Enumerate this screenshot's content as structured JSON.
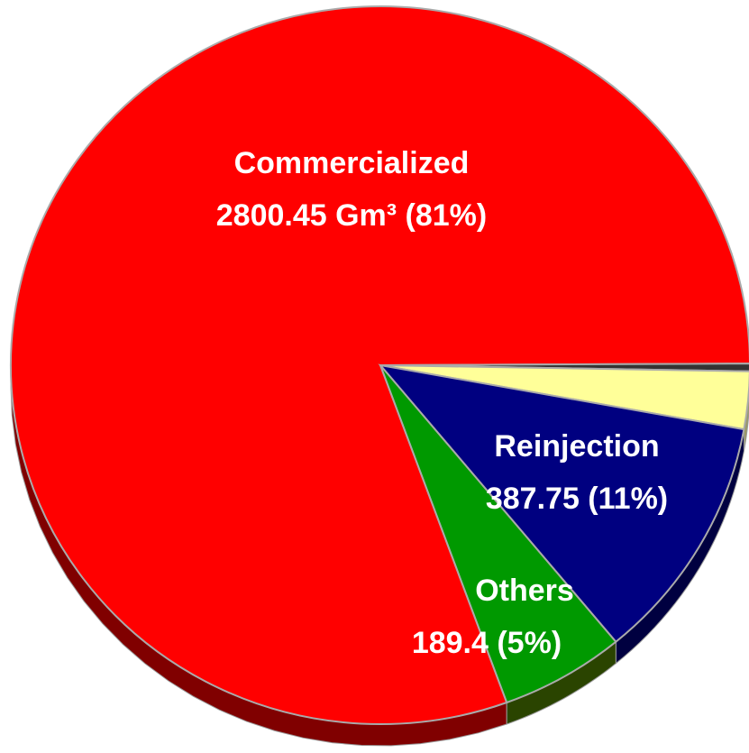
{
  "chart_data": {
    "type": "pie",
    "categories": [
      "Commercialized",
      null,
      null,
      "Reinjection",
      "Others"
    ],
    "values": [
      2800.45,
      12,
      90,
      387.75,
      189.4
    ],
    "value_labels": [
      "2800.45 Gm³ (81%)",
      null,
      null,
      "387.75 (11%)",
      "189.4 (5%)"
    ],
    "colors": [
      "#ff0000",
      "#333333",
      "#ffff99",
      "#000080",
      "#009900"
    ],
    "side_colors": [
      "#800000",
      "#1a1a1a",
      "#999966",
      "#000040",
      "#2a4400"
    ]
  }
}
